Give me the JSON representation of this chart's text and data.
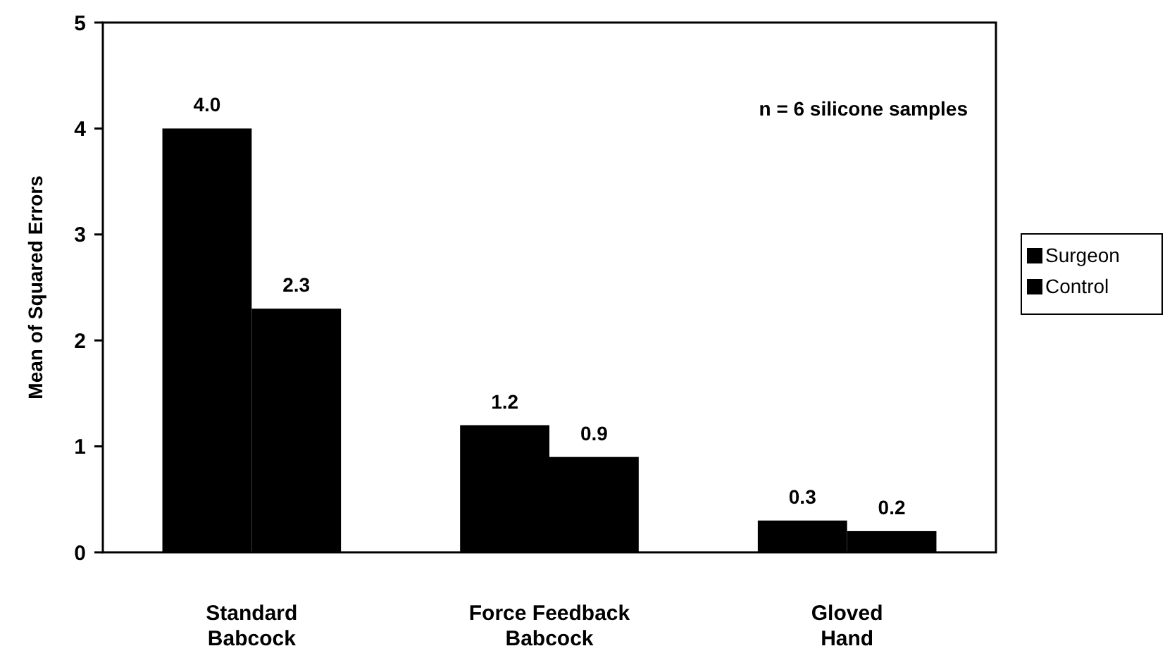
{
  "chart_data": {
    "type": "bar",
    "ylabel": "Mean of Squared Errors",
    "categories": [
      "Standard\nBabcock",
      "Force Feedback\nBabcock",
      "Gloved\nHand"
    ],
    "series": [
      {
        "name": "Surgeon",
        "color": "#000000",
        "values": [
          4.0,
          1.2,
          0.3
        ],
        "value_labels": [
          "4.0",
          "1.2",
          "0.3"
        ]
      },
      {
        "name": "Control",
        "color": "#000000",
        "values": [
          2.3,
          0.9,
          0.2
        ],
        "value_labels": [
          "2.3",
          "0.9",
          "0.2"
        ]
      }
    ],
    "ylim": [
      0,
      5
    ],
    "yticks": [
      0,
      1,
      2,
      3,
      4,
      5
    ],
    "grid": false,
    "legend": "right",
    "annotations": [
      "n = 6 silicone samples"
    ]
  }
}
